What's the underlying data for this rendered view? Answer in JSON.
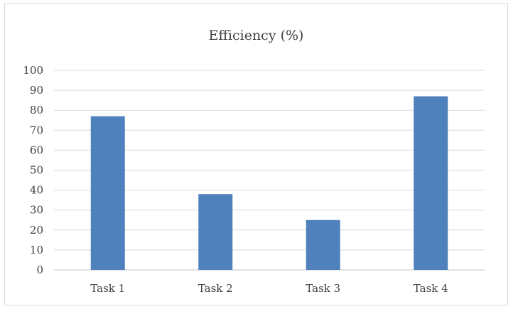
{
  "chart_data": {
    "type": "bar",
    "title": "Efficiency (%)",
    "categories": [
      "Task 1",
      "Task 2",
      "Task 3",
      "Task 4"
    ],
    "values": [
      77,
      38,
      25,
      87
    ],
    "ylim": [
      0,
      100
    ],
    "yticks": [
      0,
      10,
      20,
      30,
      40,
      50,
      60,
      70,
      80,
      90,
      100
    ],
    "grid": true,
    "legend": "none",
    "bar_color": "#4f81bd",
    "grid_color": "#d9d9d9"
  }
}
